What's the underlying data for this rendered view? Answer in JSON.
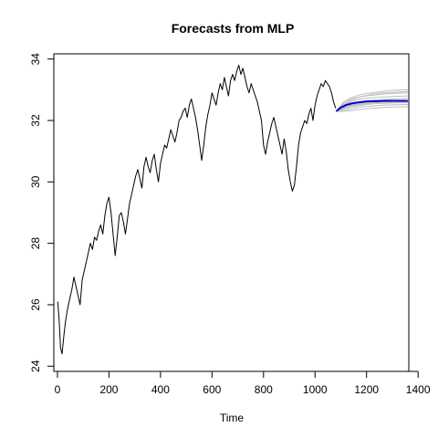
{
  "chart_data": {
    "type": "line",
    "title": "Forecasts from MLP",
    "xlabel": "Time",
    "ylabel": "",
    "xlim": [
      0,
      1400
    ],
    "ylim": [
      24,
      34
    ],
    "x_ticks": [
      0,
      200,
      400,
      600,
      800,
      1000,
      1200,
      1400
    ],
    "y_ticks": [
      24,
      26,
      28,
      30,
      32,
      34
    ],
    "grid": false,
    "legend": "none",
    "colors": {
      "history": "#000000",
      "forecast_mean": "#0000cc",
      "forecast_paths": "#bdbdbd"
    },
    "series": [
      {
        "role": "history",
        "x": [
          1,
          6,
          12,
          18,
          25,
          32,
          40,
          48,
          56,
          64,
          72,
          80,
          88,
          96,
          104,
          112,
          120,
          128,
          136,
          144,
          152,
          160,
          168,
          176,
          184,
          192,
          200,
          208,
          216,
          224,
          232,
          240,
          248,
          256,
          264,
          272,
          280,
          288,
          296,
          304,
          312,
          320,
          328,
          336,
          344,
          352,
          360,
          368,
          376,
          384,
          392,
          400,
          408,
          416,
          424,
          432,
          440,
          448,
          456,
          464,
          472,
          480,
          488,
          496,
          504,
          512,
          520,
          528,
          536,
          544,
          552,
          560,
          568,
          576,
          584,
          592,
          600,
          608,
          616,
          624,
          632,
          640,
          648,
          656,
          664,
          672,
          680,
          688,
          696,
          704,
          712,
          720,
          728,
          736,
          744,
          752,
          760,
          768,
          776,
          784,
          792,
          800,
          808,
          816,
          824,
          832,
          840,
          848,
          856,
          864,
          872,
          880,
          888,
          896,
          904,
          912,
          920,
          928,
          936,
          944,
          952,
          960,
          968,
          976,
          984,
          992,
          1000,
          1008,
          1016,
          1024,
          1032,
          1040,
          1048,
          1056,
          1064,
          1072,
          1080
        ],
        "y": [
          26.1,
          25.6,
          24.6,
          24.4,
          25.0,
          25.5,
          25.9,
          26.2,
          26.5,
          26.9,
          26.6,
          26.3,
          26.0,
          26.8,
          27.1,
          27.4,
          27.7,
          28.0,
          27.8,
          28.2,
          28.1,
          28.4,
          28.6,
          28.3,
          28.9,
          29.3,
          29.5,
          29.0,
          28.3,
          27.6,
          28.2,
          28.9,
          29.0,
          28.7,
          28.3,
          28.8,
          29.3,
          29.6,
          29.9,
          30.2,
          30.4,
          30.1,
          29.8,
          30.5,
          30.8,
          30.5,
          30.3,
          30.7,
          30.9,
          30.4,
          30.0,
          30.6,
          30.9,
          31.2,
          31.1,
          31.4,
          31.7,
          31.5,
          31.3,
          31.6,
          32.0,
          32.1,
          32.3,
          32.4,
          32.1,
          32.5,
          32.7,
          32.4,
          32.1,
          31.7,
          31.2,
          30.7,
          31.2,
          31.8,
          32.2,
          32.5,
          32.9,
          32.7,
          32.5,
          32.9,
          33.2,
          33.0,
          33.4,
          33.1,
          32.8,
          33.3,
          33.5,
          33.3,
          33.6,
          33.8,
          33.5,
          33.7,
          33.4,
          33.1,
          32.9,
          33.2,
          33.0,
          32.8,
          32.6,
          32.3,
          32.0,
          31.2,
          30.9,
          31.3,
          31.6,
          31.9,
          32.1,
          31.8,
          31.5,
          31.2,
          30.9,
          31.4,
          31.0,
          30.4,
          30.0,
          29.7,
          29.9,
          30.5,
          31.2,
          31.6,
          31.8,
          32.0,
          31.9,
          32.2,
          32.4,
          32.0,
          32.5,
          32.8,
          33.0,
          33.2,
          33.1,
          33.3,
          33.2,
          33.1,
          32.9,
          32.6,
          32.4
        ]
      },
      {
        "role": "forecast_mean",
        "x": [
          1082,
          1100,
          1120,
          1140,
          1160,
          1180,
          1200,
          1240,
          1280,
          1320,
          1360
        ],
        "y": [
          32.3,
          32.42,
          32.5,
          32.55,
          32.58,
          32.6,
          32.62,
          32.63,
          32.64,
          32.64,
          32.64
        ]
      }
    ],
    "forecast_paths": [
      {
        "x": [
          1082,
          1110,
          1140,
          1180,
          1220,
          1260,
          1300,
          1360
        ],
        "y": [
          32.3,
          32.6,
          32.75,
          32.85,
          32.9,
          32.95,
          32.98,
          33.0
        ]
      },
      {
        "x": [
          1082,
          1110,
          1140,
          1180,
          1220,
          1260,
          1300,
          1360
        ],
        "y": [
          32.3,
          32.55,
          32.7,
          32.78,
          32.82,
          32.86,
          32.88,
          32.9
        ]
      },
      {
        "x": [
          1082,
          1110,
          1140,
          1180,
          1220,
          1260,
          1300,
          1360
        ],
        "y": [
          32.3,
          32.5,
          32.62,
          32.7,
          32.74,
          32.76,
          32.78,
          32.8
        ]
      },
      {
        "x": [
          1082,
          1110,
          1140,
          1180,
          1220,
          1260,
          1300,
          1360
        ],
        "y": [
          32.3,
          32.45,
          32.55,
          32.62,
          32.66,
          32.68,
          32.7,
          32.72
        ]
      },
      {
        "x": [
          1082,
          1110,
          1140,
          1180,
          1220,
          1260,
          1300,
          1360
        ],
        "y": [
          32.3,
          32.42,
          32.5,
          32.56,
          32.6,
          32.62,
          32.63,
          32.64
        ]
      },
      {
        "x": [
          1082,
          1110,
          1140,
          1180,
          1220,
          1260,
          1300,
          1360
        ],
        "y": [
          32.3,
          32.38,
          32.44,
          32.5,
          32.54,
          32.56,
          32.57,
          32.58
        ]
      },
      {
        "x": [
          1082,
          1110,
          1140,
          1180,
          1220,
          1260,
          1300,
          1360
        ],
        "y": [
          32.3,
          32.34,
          32.38,
          32.44,
          32.47,
          32.5,
          32.51,
          32.52
        ]
      },
      {
        "x": [
          1082,
          1110,
          1140,
          1180,
          1220,
          1260,
          1300,
          1360
        ],
        "y": [
          32.3,
          32.3,
          32.32,
          32.36,
          32.4,
          32.42,
          32.44,
          32.45
        ]
      },
      {
        "x": [
          1082,
          1110,
          1140,
          1180,
          1220,
          1260,
          1300,
          1360
        ],
        "y": [
          32.3,
          32.5,
          32.66,
          32.78,
          32.85,
          32.9,
          32.92,
          32.94
        ]
      },
      {
        "x": [
          1082,
          1110,
          1140,
          1180,
          1220,
          1260,
          1300,
          1360
        ],
        "y": [
          32.3,
          32.4,
          32.48,
          32.53,
          32.57,
          32.59,
          32.6,
          32.6
        ]
      }
    ]
  }
}
